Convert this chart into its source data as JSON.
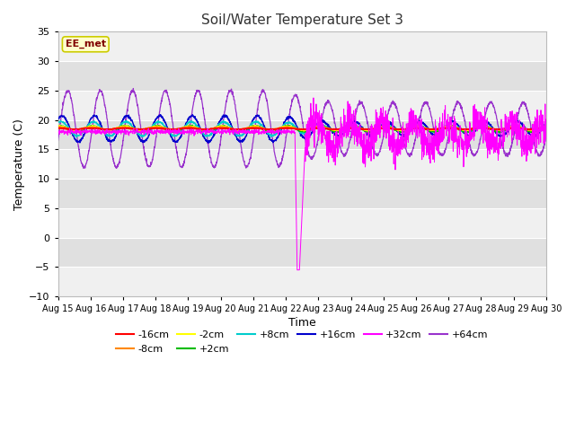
{
  "title": "Soil/Water Temperature Set 3",
  "xlabel": "Time",
  "ylabel": "Temperature (C)",
  "ylim": [
    -10,
    35
  ],
  "yticks": [
    -10,
    -5,
    0,
    5,
    10,
    15,
    20,
    25,
    30,
    35
  ],
  "x_tick_labels": [
    "Aug 15",
    "Aug 16",
    "Aug 17",
    "Aug 18",
    "Aug 19",
    "Aug 20",
    "Aug 21",
    "Aug 22",
    "Aug 23",
    "Aug 24",
    "Aug 25",
    "Aug 26",
    "Aug 27",
    "Aug 28",
    "Aug 29",
    "Aug 30"
  ],
  "annotation_text": "EE_met",
  "annotation_color": "#800000",
  "annotation_bg": "#ffffcc",
  "annotation_border": "#cccc00",
  "colors": {
    "-16cm": "#ff0000",
    "-8cm": "#ff8800",
    "-2cm": "#ffff00",
    "+2cm": "#00bb00",
    "+8cm": "#00cccc",
    "+16cm": "#0000cc",
    "+32cm": "#ff00ff",
    "+64cm": "#9933cc"
  },
  "fig_bg": "#ffffff",
  "plot_bg_light": "#f0f0f0",
  "plot_bg_dark": "#e0e0e0",
  "grid_color": "#ffffff"
}
